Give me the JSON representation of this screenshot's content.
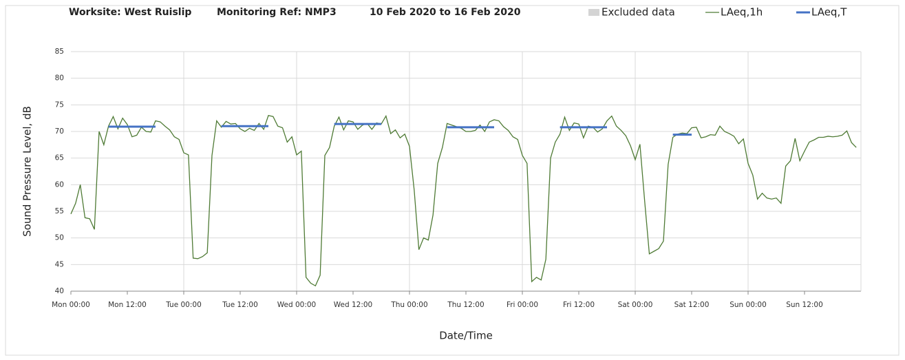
{
  "chart_data": {
    "type": "line",
    "title": "Worksite: West Ruislip",
    "monitoring_ref": "Monitoring Ref: NMP3",
    "date_range": "10 Feb 2020 to 16 Feb 2020",
    "x_label": "Date/Time",
    "y_label": "Sound Pressure Level, dB",
    "xlim": [
      0,
      168
    ],
    "ylim": [
      40,
      85
    ],
    "yticks": [
      40,
      45,
      50,
      55,
      60,
      65,
      70,
      75,
      80,
      85
    ],
    "xticks": [
      {
        "value": 0,
        "label": "Mon 00:00"
      },
      {
        "value": 12,
        "label": "Mon 12:00"
      },
      {
        "value": 24,
        "label": "Tue 00:00"
      },
      {
        "value": 36,
        "label": "Tue 12:00"
      },
      {
        "value": 48,
        "label": "Wed 00:00"
      },
      {
        "value": 60,
        "label": "Wed 12:00"
      },
      {
        "value": 72,
        "label": "Thu 00:00"
      },
      {
        "value": 84,
        "label": "Thu 12:00"
      },
      {
        "value": 96,
        "label": "Fri 00:00"
      },
      {
        "value": 108,
        "label": "Fri 12:00"
      },
      {
        "value": 120,
        "label": "Sat 00:00"
      },
      {
        "value": 132,
        "label": "Sat 12:00"
      },
      {
        "value": 144,
        "label": "Sun 00:00"
      },
      {
        "value": 156,
        "label": "Sun 12:00"
      }
    ],
    "grid": true,
    "series": [
      {
        "name": "Excluded data",
        "color": "#d4d4d4"
      },
      {
        "name": "LAeq,1h",
        "color": "#4e7a34",
        "x": [
          0,
          1,
          2,
          3,
          4,
          5,
          6,
          7,
          8,
          9,
          10,
          11,
          12,
          13,
          14,
          15,
          16,
          17,
          18,
          19,
          20,
          21,
          22,
          23,
          24,
          25,
          26,
          27,
          28,
          29,
          30,
          31,
          32,
          33,
          34,
          35,
          36,
          37,
          38,
          39,
          40,
          41,
          42,
          43,
          44,
          45,
          46,
          47,
          48,
          49,
          50,
          51,
          52,
          53,
          54,
          55,
          56,
          57,
          58,
          59,
          60,
          61,
          62,
          63,
          64,
          65,
          66,
          67,
          68,
          69,
          70,
          71,
          72,
          73,
          74,
          75,
          76,
          77,
          78,
          79,
          80,
          81,
          82,
          83,
          84,
          85,
          86,
          87,
          88,
          89,
          90,
          91,
          92,
          93,
          94,
          95,
          96,
          97,
          98,
          99,
          100,
          101,
          102,
          103,
          104,
          105,
          106,
          107,
          108,
          109,
          110,
          111,
          112,
          113,
          114,
          115,
          116,
          117,
          118,
          119,
          120,
          121,
          122,
          123,
          124,
          125,
          126,
          127,
          128,
          129,
          130,
          131,
          132,
          133,
          134,
          135,
          136,
          137,
          138,
          139,
          140,
          141,
          142,
          143,
          144,
          145,
          146,
          147,
          148,
          149,
          150,
          151,
          152,
          153,
          154,
          155,
          156,
          157,
          158,
          159,
          160,
          161,
          162,
          163,
          164,
          165,
          166,
          167
        ],
        "values": [
          54.5,
          56.5,
          60,
          53.8,
          53.6,
          51.6,
          70,
          67.5,
          71,
          72.8,
          70.5,
          72.5,
          71.3,
          69,
          69.3,
          70.8,
          70,
          69.9,
          72,
          71.8,
          71,
          70.3,
          69,
          68.5,
          66,
          65.6,
          46.2,
          46.1,
          46.5,
          47.2,
          65.5,
          72,
          70.8,
          71.9,
          71.4,
          71.5,
          70.5,
          70,
          70.6,
          70.2,
          71.5,
          70.4,
          73,
          72.8,
          71,
          70.7,
          68,
          69,
          65.6,
          66.3,
          42.6,
          41.5,
          41,
          43,
          65.5,
          67,
          71,
          72.7,
          70.3,
          72,
          71.8,
          70.4,
          71.2,
          71.5,
          70.4,
          71.6,
          71.4,
          72.9,
          69.6,
          70.3,
          68.8,
          69.5,
          67.2,
          59,
          47.8,
          50,
          49.6,
          54.3,
          64,
          67,
          71.5,
          71.2,
          70.9,
          70.6,
          70,
          70,
          70.2,
          71.2,
          70,
          71.8,
          72.2,
          72,
          70.9,
          70.2,
          69,
          68.5,
          65.5,
          64,
          41.8,
          42.6,
          42.1,
          46,
          65,
          68,
          69.5,
          72.7,
          70.2,
          71.6,
          71.4,
          68.8,
          71,
          70.8,
          69.9,
          70.5,
          72,
          72.9,
          71,
          70.2,
          69.2,
          67.3,
          64.7,
          67.6,
          57,
          47,
          47.5,
          48,
          49.4,
          63.8,
          68.9,
          69.5,
          69.7,
          69.6,
          70.7,
          70.8,
          68.8,
          69,
          69.4,
          69.3,
          71,
          70,
          69.6,
          69.1,
          67.7,
          68.6,
          64,
          61.8,
          57.3,
          58.4,
          57.5,
          57.3,
          57.5,
          56.5,
          63.5,
          64.5,
          68.7,
          64.5,
          66.3,
          68,
          68.4,
          68.9,
          68.9,
          69.1,
          69,
          69.1,
          69.3,
          70.1,
          67.9,
          67
        ]
      },
      {
        "name": "LAeq,T",
        "color": "#4472c4",
        "segments": [
          {
            "x": [
              8,
              18
            ],
            "value": 70.9
          },
          {
            "x": [
              32,
              42
            ],
            "value": 71
          },
          {
            "x": [
              56,
              66
            ],
            "value": 71.4
          },
          {
            "x": [
              80,
              90
            ],
            "value": 70.8
          },
          {
            "x": [
              104,
              114
            ],
            "value": 70.8
          },
          {
            "x": [
              128,
              132
            ],
            "value": 69.4
          }
        ]
      }
    ]
  }
}
